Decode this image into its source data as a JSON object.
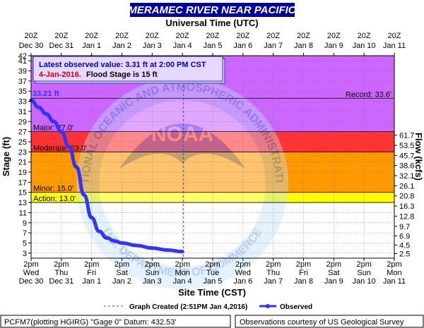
{
  "title": "MERAMEC RIVER NEAR PACIFIC",
  "top_axis_title": "Universal Time (UTC)",
  "bottom_axis_title": "Site Time (CST)",
  "left_axis_title": "Stage (ft)",
  "right_axis_title": "Flow (kcfs)",
  "top_ticks": [
    {
      "l1": "20Z",
      "l2": "Dec 30"
    },
    {
      "l1": "20Z",
      "l2": "Dec 31"
    },
    {
      "l1": "20Z",
      "l2": "Jan 1"
    },
    {
      "l1": "20Z",
      "l2": "Jan 2"
    },
    {
      "l1": "20Z",
      "l2": "Jan 3"
    },
    {
      "l1": "20Z",
      "l2": "Jan 4"
    },
    {
      "l1": "20Z",
      "l2": "Jan 5"
    },
    {
      "l1": "20Z",
      "l2": "Jan 6"
    },
    {
      "l1": "20Z",
      "l2": "Jan 7"
    },
    {
      "l1": "20Z",
      "l2": "Jan 8"
    },
    {
      "l1": "20Z",
      "l2": "Jan 9"
    },
    {
      "l1": "20Z",
      "l2": "Jan 10"
    },
    {
      "l1": "20Z",
      "l2": "Jan 11"
    }
  ],
  "bottom_ticks": [
    {
      "l1": "2pm",
      "l2": "Wed",
      "l3": "Dec 30"
    },
    {
      "l1": "2pm",
      "l2": "Thu",
      "l3": "Dec 31"
    },
    {
      "l1": "2pm",
      "l2": "Fri",
      "l3": "Jan 1"
    },
    {
      "l1": "2pm",
      "l2": "Sat",
      "l3": "Jan 2"
    },
    {
      "l1": "2pm",
      "l2": "Sun",
      "l3": "Jan 3"
    },
    {
      "l1": "2pm",
      "l2": "Mon",
      "l3": "Jan 4"
    },
    {
      "l1": "2pm",
      "l2": "Tue",
      "l3": "Jan 5"
    },
    {
      "l1": "2pm",
      "l2": "Wed",
      "l3": "Jan 6"
    },
    {
      "l1": "2pm",
      "l2": "Thu",
      "l3": "Jan 7"
    },
    {
      "l1": "2pm",
      "l2": "Fri",
      "l3": "Jan 8"
    },
    {
      "l1": "2pm",
      "l2": "Sat",
      "l3": "Jan 9"
    },
    {
      "l1": "2pm",
      "l2": "Sun",
      "l3": "Jan 10"
    },
    {
      "l1": "2pm",
      "l2": "Mon",
      "l3": "Jan 11"
    }
  ],
  "stage_ticks": [
    3,
    5,
    7,
    9,
    11,
    13,
    15,
    17,
    19,
    21,
    23,
    25,
    27,
    29,
    31,
    33,
    35,
    37,
    39,
    41,
    42
  ],
  "flow_ticks": [
    {
      "label": "2.5",
      "stage": 2.9
    },
    {
      "label": "4.5",
      "stage": 4.6
    },
    {
      "label": "6.9",
      "stage": 6.4
    },
    {
      "label": "9.7",
      "stage": 8.3
    },
    {
      "label": "12.8",
      "stage": 10.3
    },
    {
      "label": "16.3",
      "stage": 12.3
    },
    {
      "label": "20.8",
      "stage": 14.3
    },
    {
      "label": "26.1",
      "stage": 16.3
    },
    {
      "label": "32.1",
      "stage": 18.3
    },
    {
      "label": "38.6",
      "stage": 20.3
    },
    {
      "label": "45.7",
      "stage": 22.3
    },
    {
      "label": "53.5",
      "stage": 24.3
    },
    {
      "label": "61.7",
      "stage": 26.3
    }
  ],
  "zones": [
    {
      "name": "record",
      "from": 33.6,
      "to": 42,
      "color": "#cc66ff"
    },
    {
      "name": "major",
      "from": 27,
      "to": 33.6,
      "color": "#cc66ff"
    },
    {
      "name": "moderate",
      "from": 23,
      "to": 27,
      "color": "#ff3333"
    },
    {
      "name": "flood",
      "from": 15,
      "to": 23,
      "color": "#ff9900"
    },
    {
      "name": "action",
      "from": 13,
      "to": 15,
      "color": "#ffff00"
    }
  ],
  "thresholds": [
    {
      "label": "Record: 33.6'",
      "value": 33.6,
      "align": "right"
    },
    {
      "label": "Major: 27.0'",
      "value": 27.0,
      "align": "left"
    },
    {
      "label": "Moderate: 23.0'",
      "value": 23.0,
      "align": "left"
    },
    {
      "label": "Minor: 15.0'",
      "value": 15.0,
      "align": "left"
    },
    {
      "label": "Action: 13.0'",
      "value": 13.0,
      "align": "left"
    }
  ],
  "info_box": {
    "line1": "Latest observed value: 3.31 ft at 2:00 PM CST",
    "line2_date": "4-Jan-2016.",
    "line2_rest": "Flood Stage is 15 ft"
  },
  "peak_label": "33.21 ft",
  "legend": {
    "created": "Graph Created (2:51PM Jan 4,2016)",
    "observed": "Observed"
  },
  "footer": {
    "left": "PCFM7(plotting HGIRG) \"Gage 0\" Datum: 432.53'",
    "right": "Observations courtesy of US Geological Survey"
  },
  "watermark": {
    "outer_text": "NATIONAL OCEANIC AND ATMOSPHERIC ADMINISTRATION",
    "inner": "NOAA",
    "bottom_text": "U.S. DEPARTMENT OF COMMERCE"
  },
  "colors": {
    "title_bg": "#00009c",
    "series": "#3333ff",
    "peak_label": "#3333ff"
  },
  "chart_data": {
    "type": "line",
    "title": "MERAMEC RIVER NEAR PACIFIC",
    "xlabel": "Site Time (CST)",
    "ylabel": "Stage (ft)",
    "y2label": "Flow (kcfs)",
    "ylim": [
      2,
      42
    ],
    "xlim_days_label": [
      "Dec 30 2pm",
      "Jan 11 2pm"
    ],
    "created_time": "Jan 4 2:51PM",
    "series": [
      {
        "name": "Observed",
        "x": [
          "Dec 30 2pm",
          "Dec 30 8pm",
          "Dec 31 2am",
          "Dec 31 8am",
          "Dec 31 2pm",
          "Dec 31 8pm",
          "Jan 1 2am",
          "Jan 1 8am",
          "Jan 1 2pm",
          "Jan 1 8pm",
          "Jan 2 2am",
          "Jan 2 8am",
          "Jan 2 2pm",
          "Jan 3 2am",
          "Jan 3 2pm",
          "Jan 4 2am",
          "Jan 4 2pm"
        ],
        "values": [
          33.2,
          31.8,
          30.5,
          29.0,
          27.0,
          24.0,
          20.0,
          14.5,
          10.0,
          7.3,
          6.0,
          5.4,
          5.0,
          4.5,
          4.0,
          3.6,
          3.31
        ]
      }
    ]
  }
}
